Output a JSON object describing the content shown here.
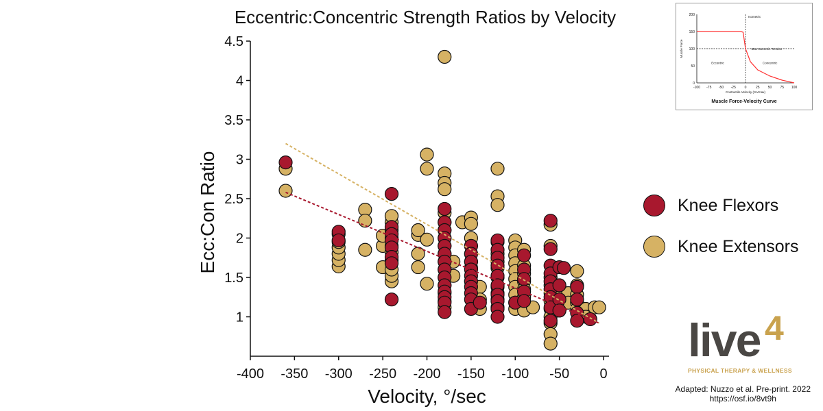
{
  "chart_data": {
    "type": "scatter",
    "title": "Eccentric:Concentric Strength Ratios by Velocity",
    "xlabel": "Velocity, °/sec",
    "ylabel": "Ecc:Con Ratio",
    "xlim": [
      -400,
      0
    ],
    "ylim": [
      0.5,
      4.5
    ],
    "xticks": [
      -400,
      -350,
      -300,
      -250,
      -200,
      -150,
      -100,
      -50,
      0
    ],
    "yticks": [
      1,
      1.5,
      2,
      2.5,
      3,
      3.5,
      4,
      4.5
    ],
    "grid": false,
    "legend_position": "right",
    "series": [
      {
        "name": "Knee Extensors",
        "color": "#d6b264",
        "trend": [
          [
            -360,
            3.2
          ],
          [
            -5,
            0.92
          ]
        ],
        "points": [
          [
            -360,
            2.88
          ],
          [
            -360,
            2.6
          ],
          [
            -300,
            1.64
          ],
          [
            -300,
            1.72
          ],
          [
            -300,
            1.8
          ],
          [
            -300,
            1.88
          ],
          [
            -300,
            1.95
          ],
          [
            -300,
            2.05
          ],
          [
            -270,
            2.36
          ],
          [
            -270,
            2.22
          ],
          [
            -270,
            1.85
          ],
          [
            -250,
            1.63
          ],
          [
            -250,
            1.9
          ],
          [
            -250,
            2.03
          ],
          [
            -240,
            1.45
          ],
          [
            -240,
            1.52
          ],
          [
            -240,
            1.6
          ],
          [
            -240,
            1.72
          ],
          [
            -240,
            1.82
          ],
          [
            -240,
            1.9
          ],
          [
            -240,
            2.0
          ],
          [
            -240,
            2.1
          ],
          [
            -240,
            2.2
          ],
          [
            -240,
            2.28
          ],
          [
            -210,
            1.63
          ],
          [
            -210,
            1.8
          ],
          [
            -210,
            2.04
          ],
          [
            -210,
            2.1
          ],
          [
            -200,
            3.06
          ],
          [
            -200,
            2.88
          ],
          [
            -200,
            1.98
          ],
          [
            -200,
            1.42
          ],
          [
            -180,
            4.3
          ],
          [
            -180,
            2.82
          ],
          [
            -180,
            2.7
          ],
          [
            -180,
            2.62
          ],
          [
            -180,
            2.32
          ],
          [
            -180,
            2.2
          ],
          [
            -180,
            2.1
          ],
          [
            -180,
            2.0
          ],
          [
            -180,
            1.9
          ],
          [
            -180,
            1.8
          ],
          [
            -180,
            1.7
          ],
          [
            -180,
            1.6
          ],
          [
            -180,
            1.5
          ],
          [
            -180,
            1.4
          ],
          [
            -180,
            1.3
          ],
          [
            -180,
            1.2
          ],
          [
            -180,
            1.12
          ],
          [
            -170,
            1.7
          ],
          [
            -170,
            1.52
          ],
          [
            -160,
            2.2
          ],
          [
            -150,
            2.26
          ],
          [
            -150,
            2.18
          ],
          [
            -150,
            2.0
          ],
          [
            -150,
            1.9
          ],
          [
            -150,
            1.8
          ],
          [
            -150,
            1.7
          ],
          [
            -150,
            1.62
          ],
          [
            -150,
            1.45
          ],
          [
            -140,
            1.38
          ],
          [
            -140,
            1.22
          ],
          [
            -140,
            1.1
          ],
          [
            -120,
            2.88
          ],
          [
            -120,
            2.53
          ],
          [
            -120,
            2.42
          ],
          [
            -120,
            1.95
          ],
          [
            -120,
            1.8
          ],
          [
            -120,
            1.7
          ],
          [
            -120,
            1.62
          ],
          [
            -120,
            1.5
          ],
          [
            -120,
            1.38
          ],
          [
            -120,
            1.3
          ],
          [
            -120,
            1.22
          ],
          [
            -120,
            1.12
          ],
          [
            -100,
            1.97
          ],
          [
            -100,
            1.88
          ],
          [
            -100,
            1.78
          ],
          [
            -100,
            1.68
          ],
          [
            -100,
            1.58
          ],
          [
            -100,
            1.48
          ],
          [
            -100,
            1.38
          ],
          [
            -100,
            1.28
          ],
          [
            -100,
            1.18
          ],
          [
            -100,
            1.1
          ],
          [
            -90,
            1.85
          ],
          [
            -90,
            1.65
          ],
          [
            -90,
            1.55
          ],
          [
            -90,
            1.45
          ],
          [
            -90,
            1.35
          ],
          [
            -90,
            1.25
          ],
          [
            -90,
            1.15
          ],
          [
            -90,
            1.08
          ],
          [
            -80,
            1.12
          ],
          [
            -60,
            2.17
          ],
          [
            -60,
            1.9
          ],
          [
            -60,
            1.5
          ],
          [
            -60,
            1.4
          ],
          [
            -60,
            1.3
          ],
          [
            -60,
            1.2
          ],
          [
            -60,
            1.1
          ],
          [
            -60,
            1.0
          ],
          [
            -60,
            0.92
          ],
          [
            -60,
            0.78
          ],
          [
            -60,
            0.66
          ],
          [
            -50,
            1.38
          ],
          [
            -50,
            1.28
          ],
          [
            -50,
            1.18
          ],
          [
            -50,
            1.08
          ],
          [
            -40,
            1.3
          ],
          [
            -40,
            1.18
          ],
          [
            -30,
            1.58
          ],
          [
            -30,
            1.4
          ],
          [
            -30,
            1.28
          ],
          [
            -30,
            1.18
          ],
          [
            -30,
            1.1
          ],
          [
            -20,
            1.1
          ],
          [
            -20,
            1.0
          ],
          [
            -10,
            1.12
          ],
          [
            -5,
            1.12
          ]
        ]
      },
      {
        "name": "Knee Flexors",
        "color": "#a8182e",
        "trend": [
          [
            -360,
            2.58
          ],
          [
            -5,
            0.92
          ]
        ],
        "points": [
          [
            -360,
            2.96
          ],
          [
            -300,
            2.08
          ],
          [
            -300,
            1.97
          ],
          [
            -240,
            2.56
          ],
          [
            -240,
            2.14
          ],
          [
            -240,
            2.05
          ],
          [
            -240,
            1.97
          ],
          [
            -240,
            1.88
          ],
          [
            -240,
            1.76
          ],
          [
            -240,
            1.68
          ],
          [
            -240,
            1.22
          ],
          [
            -180,
            2.37
          ],
          [
            -180,
            2.2
          ],
          [
            -180,
            2.1
          ],
          [
            -180,
            2.0
          ],
          [
            -180,
            1.9
          ],
          [
            -180,
            1.8
          ],
          [
            -180,
            1.7
          ],
          [
            -180,
            1.6
          ],
          [
            -180,
            1.5
          ],
          [
            -180,
            1.4
          ],
          [
            -180,
            1.32
          ],
          [
            -180,
            1.25
          ],
          [
            -180,
            1.18
          ],
          [
            -180,
            1.06
          ],
          [
            -150,
            1.9
          ],
          [
            -150,
            1.8
          ],
          [
            -150,
            1.7
          ],
          [
            -150,
            1.6
          ],
          [
            -150,
            1.52
          ],
          [
            -150,
            1.45
          ],
          [
            -150,
            1.38
          ],
          [
            -150,
            1.3
          ],
          [
            -150,
            1.22
          ],
          [
            -150,
            1.1
          ],
          [
            -140,
            1.18
          ],
          [
            -120,
            1.97
          ],
          [
            -120,
            1.85
          ],
          [
            -120,
            1.75
          ],
          [
            -120,
            1.65
          ],
          [
            -120,
            1.52
          ],
          [
            -120,
            1.4
          ],
          [
            -120,
            1.28
          ],
          [
            -120,
            1.2
          ],
          [
            -120,
            1.1
          ],
          [
            -120,
            1.0
          ],
          [
            -100,
            1.18
          ],
          [
            -90,
            1.78
          ],
          [
            -90,
            1.6
          ],
          [
            -90,
            1.48
          ],
          [
            -90,
            1.32
          ],
          [
            -90,
            1.2
          ],
          [
            -60,
            2.22
          ],
          [
            -60,
            1.86
          ],
          [
            -60,
            1.65
          ],
          [
            -60,
            1.55
          ],
          [
            -60,
            1.45
          ],
          [
            -60,
            1.35
          ],
          [
            -60,
            1.25
          ],
          [
            -60,
            1.12
          ],
          [
            -60,
            0.95
          ],
          [
            -50,
            1.63
          ],
          [
            -50,
            1.4
          ],
          [
            -50,
            1.22
          ],
          [
            -50,
            1.08
          ],
          [
            -45,
            1.62
          ],
          [
            -30,
            1.38
          ],
          [
            -30,
            1.22
          ],
          [
            -30,
            1.05
          ],
          [
            -30,
            0.95
          ],
          [
            -15,
            0.97
          ]
        ]
      }
    ],
    "legend": [
      {
        "label": "Knee Flexors",
        "color": "#a8182e"
      },
      {
        "label": "Knee Extensors",
        "color": "#d6b264"
      }
    ]
  },
  "inset_chart": {
    "type": "line",
    "title": "Muscle Force-Velocity Curve",
    "xlabel": "Contractile Velocity (%Vmax)",
    "ylabel": "Muscle Force",
    "xticks": [
      -100,
      -75,
      -50,
      -25,
      0,
      25,
      50,
      75,
      100
    ],
    "yticks": [
      0,
      50,
      100,
      150,
      200
    ],
    "label_isometric": "Isometric",
    "label_max": "Max Isometric Tension",
    "label_eccentric": "Eccentric",
    "label_concentric": "Concentric",
    "curve_color": "#ff3030",
    "points": [
      [
        -100,
        150
      ],
      [
        -10,
        150
      ],
      [
        -5,
        148
      ],
      [
        0,
        100
      ],
      [
        10,
        62
      ],
      [
        25,
        38
      ],
      [
        50,
        20
      ],
      [
        75,
        8
      ],
      [
        100,
        0
      ]
    ]
  },
  "logo": {
    "word": "live",
    "number": "4",
    "tagline": "PHYSICAL THERAPY & WELLNESS"
  },
  "source": {
    "line1": "Adapted: Nuzzo et al. Pre-print. 2022",
    "line2": "https://osf.io/8vt9h"
  }
}
